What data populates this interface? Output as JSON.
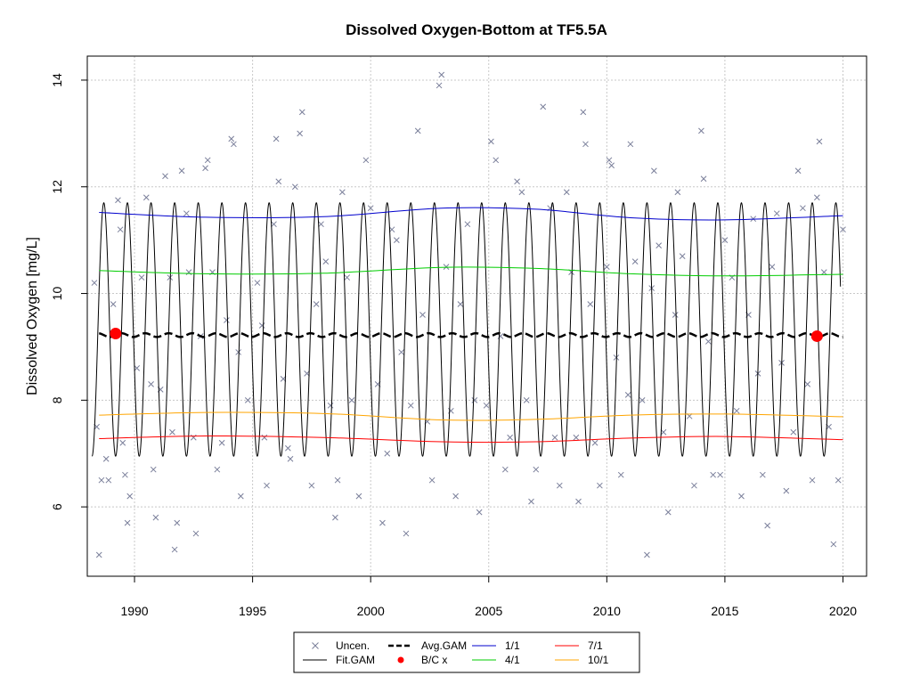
{
  "chart_data": {
    "type": "line",
    "title": "Dissolved Oxygen-Bottom at TF5.5A",
    "xlabel": "",
    "ylabel": "Dissolved Oxygen [mg/L]",
    "xlim": [
      1988.0,
      2021.0
    ],
    "ylim": [
      4.7,
      14.45
    ],
    "x_ticks": [
      1990,
      1995,
      2000,
      2005,
      2010,
      2015,
      2020
    ],
    "x_tick_labels": [
      "1990",
      "1995",
      "2000",
      "2005",
      "2010",
      "2015",
      "2020"
    ],
    "y_ticks": [
      6,
      8,
      10,
      12,
      14
    ],
    "y_tick_labels": [
      "6",
      "8",
      "10",
      "12",
      "14"
    ],
    "grid": true,
    "legend_position": "bottom",
    "legend": [
      {
        "label": "Uncen.",
        "kind": "x-marker",
        "color": "#7a7f9a"
      },
      {
        "label": "Fit.GAM",
        "kind": "line",
        "color": "#000000"
      },
      {
        "label": "Avg.GAM",
        "kind": "dashed-line",
        "color": "#000000"
      },
      {
        "label": "B/C x",
        "kind": "dot",
        "color": "#ff0000"
      },
      {
        "label": "1/1",
        "kind": "line",
        "color": "#0000cd"
      },
      {
        "label": "4/1",
        "kind": "line",
        "color": "#00cd00"
      },
      {
        "label": "7/1",
        "kind": "line",
        "color": "#ff0000"
      },
      {
        "label": "10/1",
        "kind": "line",
        "color": "#ffa500"
      }
    ],
    "series": [
      {
        "name": "1/1",
        "color": "#0000cd",
        "x": [
          1988.5,
          1993,
          1998,
          2003,
          2007,
          2011,
          2015,
          2020
        ],
        "y": [
          11.52,
          11.43,
          11.44,
          11.6,
          11.58,
          11.42,
          11.38,
          11.46
        ]
      },
      {
        "name": "4/1",
        "color": "#00cd00",
        "x": [
          1988.5,
          1993,
          1998,
          2003,
          2007,
          2011,
          2015,
          2020
        ],
        "y": [
          10.43,
          10.37,
          10.38,
          10.49,
          10.47,
          10.37,
          10.33,
          10.36
        ]
      },
      {
        "name": "7/1",
        "color": "#ff0000",
        "x": [
          1988.5,
          1993,
          1998,
          2003,
          2007,
          2011,
          2015,
          2020
        ],
        "y": [
          7.28,
          7.33,
          7.3,
          7.22,
          7.22,
          7.29,
          7.32,
          7.26
        ]
      },
      {
        "name": "10/1",
        "color": "#ffa500",
        "x": [
          1988.5,
          1993,
          1998,
          2003,
          2007,
          2011,
          2015,
          2020
        ],
        "y": [
          7.72,
          7.77,
          7.75,
          7.63,
          7.64,
          7.72,
          7.74,
          7.69
        ]
      },
      {
        "name": "Avg.GAM",
        "color": "#000000",
        "x": [
          1988.5,
          2020
        ],
        "y": [
          9.22,
          9.22
        ]
      },
      {
        "name": "Fit.GAM",
        "color": "#000000",
        "x_start": 1988.2,
        "x_end": 2019.9,
        "max": 11.7,
        "min": 6.95
      }
    ],
    "points_bc": [
      {
        "x": 1989.2,
        "y": 9.25
      },
      {
        "x": 2018.9,
        "y": 9.2
      }
    ],
    "points_uncen": [
      {
        "x": 1988.3,
        "y": 10.2
      },
      {
        "x": 1988.4,
        "y": 7.5
      },
      {
        "x": 1988.5,
        "y": 5.1
      },
      {
        "x": 1988.6,
        "y": 6.5
      },
      {
        "x": 1988.8,
        "y": 6.9
      },
      {
        "x": 1988.9,
        "y": 6.5
      },
      {
        "x": 1989.1,
        "y": 9.8
      },
      {
        "x": 1989.3,
        "y": 11.75
      },
      {
        "x": 1989.4,
        "y": 11.2
      },
      {
        "x": 1989.5,
        "y": 7.2
      },
      {
        "x": 1989.6,
        "y": 6.6
      },
      {
        "x": 1989.7,
        "y": 5.7
      },
      {
        "x": 1989.8,
        "y": 6.2
      },
      {
        "x": 1990.1,
        "y": 8.6
      },
      {
        "x": 1990.3,
        "y": 10.3
      },
      {
        "x": 1990.5,
        "y": 11.8
      },
      {
        "x": 1990.7,
        "y": 8.3
      },
      {
        "x": 1990.8,
        "y": 6.7
      },
      {
        "x": 1990.9,
        "y": 5.8
      },
      {
        "x": 1991.1,
        "y": 8.2
      },
      {
        "x": 1991.3,
        "y": 12.2
      },
      {
        "x": 1991.5,
        "y": 10.3
      },
      {
        "x": 1991.6,
        "y": 7.4
      },
      {
        "x": 1991.7,
        "y": 5.2
      },
      {
        "x": 1991.8,
        "y": 5.7
      },
      {
        "x": 1992.0,
        "y": 12.3
      },
      {
        "x": 1992.2,
        "y": 11.5
      },
      {
        "x": 1992.3,
        "y": 10.4
      },
      {
        "x": 1992.5,
        "y": 7.3
      },
      {
        "x": 1992.6,
        "y": 5.5
      },
      {
        "x": 1992.8,
        "y": 9.2
      },
      {
        "x": 1993.0,
        "y": 12.35
      },
      {
        "x": 1993.1,
        "y": 12.5
      },
      {
        "x": 1993.3,
        "y": 10.4
      },
      {
        "x": 1993.5,
        "y": 6.7
      },
      {
        "x": 1993.7,
        "y": 7.2
      },
      {
        "x": 1993.9,
        "y": 9.5
      },
      {
        "x": 1994.1,
        "y": 12.9
      },
      {
        "x": 1994.2,
        "y": 12.8
      },
      {
        "x": 1994.4,
        "y": 8.9
      },
      {
        "x": 1994.5,
        "y": 6.2
      },
      {
        "x": 1994.8,
        "y": 8.0
      },
      {
        "x": 1995.2,
        "y": 10.2
      },
      {
        "x": 1995.4,
        "y": 9.4
      },
      {
        "x": 1995.5,
        "y": 7.3
      },
      {
        "x": 1995.6,
        "y": 6.4
      },
      {
        "x": 1995.9,
        "y": 11.3
      },
      {
        "x": 1996.0,
        "y": 12.9
      },
      {
        "x": 1996.1,
        "y": 12.1
      },
      {
        "x": 1996.3,
        "y": 8.4
      },
      {
        "x": 1996.5,
        "y": 7.1
      },
      {
        "x": 1996.6,
        "y": 6.9
      },
      {
        "x": 1996.8,
        "y": 12.0
      },
      {
        "x": 1997.0,
        "y": 13.0
      },
      {
        "x": 1997.1,
        "y": 13.4
      },
      {
        "x": 1997.3,
        "y": 8.5
      },
      {
        "x": 1997.5,
        "y": 6.4
      },
      {
        "x": 1997.7,
        "y": 9.8
      },
      {
        "x": 1997.9,
        "y": 11.3
      },
      {
        "x": 1998.1,
        "y": 10.6
      },
      {
        "x": 1998.3,
        "y": 7.9
      },
      {
        "x": 1998.5,
        "y": 5.8
      },
      {
        "x": 1998.6,
        "y": 6.5
      },
      {
        "x": 1998.8,
        "y": 11.9
      },
      {
        "x": 1999.0,
        "y": 10.3
      },
      {
        "x": 1999.2,
        "y": 8.0
      },
      {
        "x": 1999.5,
        "y": 6.2
      },
      {
        "x": 1999.8,
        "y": 12.5
      },
      {
        "x": 2000.0,
        "y": 11.6
      },
      {
        "x": 2000.3,
        "y": 8.3
      },
      {
        "x": 2000.5,
        "y": 5.7
      },
      {
        "x": 2000.7,
        "y": 7.0
      },
      {
        "x": 2000.9,
        "y": 11.2
      },
      {
        "x": 2001.1,
        "y": 11.0
      },
      {
        "x": 2001.3,
        "y": 8.9
      },
      {
        "x": 2001.5,
        "y": 5.5
      },
      {
        "x": 2001.7,
        "y": 7.9
      },
      {
        "x": 2002.0,
        "y": 13.05
      },
      {
        "x": 2002.2,
        "y": 9.6
      },
      {
        "x": 2002.4,
        "y": 7.6
      },
      {
        "x": 2002.6,
        "y": 6.5
      },
      {
        "x": 2002.9,
        "y": 13.9
      },
      {
        "x": 2003.0,
        "y": 14.1
      },
      {
        "x": 2003.2,
        "y": 10.5
      },
      {
        "x": 2003.4,
        "y": 7.8
      },
      {
        "x": 2003.6,
        "y": 6.2
      },
      {
        "x": 2003.8,
        "y": 9.8
      },
      {
        "x": 2004.1,
        "y": 11.3
      },
      {
        "x": 2004.4,
        "y": 8.0
      },
      {
        "x": 2004.6,
        "y": 5.9
      },
      {
        "x": 2004.9,
        "y": 7.9
      },
      {
        "x": 2005.1,
        "y": 12.85
      },
      {
        "x": 2005.3,
        "y": 12.5
      },
      {
        "x": 2005.5,
        "y": 9.2
      },
      {
        "x": 2005.7,
        "y": 6.7
      },
      {
        "x": 2005.9,
        "y": 7.3
      },
      {
        "x": 2006.2,
        "y": 12.1
      },
      {
        "x": 2006.4,
        "y": 11.9
      },
      {
        "x": 2006.6,
        "y": 8.0
      },
      {
        "x": 2006.8,
        "y": 6.1
      },
      {
        "x": 2007.0,
        "y": 6.7
      },
      {
        "x": 2007.3,
        "y": 13.5
      },
      {
        "x": 2007.6,
        "y": 11.6
      },
      {
        "x": 2007.8,
        "y": 7.3
      },
      {
        "x": 2008.0,
        "y": 6.4
      },
      {
        "x": 2008.3,
        "y": 11.9
      },
      {
        "x": 2008.5,
        "y": 10.4
      },
      {
        "x": 2008.7,
        "y": 7.3
      },
      {
        "x": 2008.8,
        "y": 6.1
      },
      {
        "x": 2009.0,
        "y": 13.4
      },
      {
        "x": 2009.1,
        "y": 12.8
      },
      {
        "x": 2009.3,
        "y": 9.8
      },
      {
        "x": 2009.5,
        "y": 7.2
      },
      {
        "x": 2009.7,
        "y": 6.4
      },
      {
        "x": 2010.0,
        "y": 10.5
      },
      {
        "x": 2010.1,
        "y": 12.5
      },
      {
        "x": 2010.2,
        "y": 12.4
      },
      {
        "x": 2010.4,
        "y": 8.8
      },
      {
        "x": 2010.6,
        "y": 6.6
      },
      {
        "x": 2010.9,
        "y": 8.1
      },
      {
        "x": 2011.0,
        "y": 12.8
      },
      {
        "x": 2011.2,
        "y": 10.6
      },
      {
        "x": 2011.5,
        "y": 8.0
      },
      {
        "x": 2011.7,
        "y": 5.1
      },
      {
        "x": 2011.9,
        "y": 10.1
      },
      {
        "x": 2012.0,
        "y": 12.3
      },
      {
        "x": 2012.2,
        "y": 10.9
      },
      {
        "x": 2012.4,
        "y": 7.4
      },
      {
        "x": 2012.6,
        "y": 5.9
      },
      {
        "x": 2012.9,
        "y": 9.6
      },
      {
        "x": 2013.0,
        "y": 11.9
      },
      {
        "x": 2013.2,
        "y": 10.7
      },
      {
        "x": 2013.5,
        "y": 7.7
      },
      {
        "x": 2013.7,
        "y": 6.4
      },
      {
        "x": 2014.0,
        "y": 13.05
      },
      {
        "x": 2014.1,
        "y": 12.15
      },
      {
        "x": 2014.3,
        "y": 9.1
      },
      {
        "x": 2014.5,
        "y": 6.6
      },
      {
        "x": 2014.8,
        "y": 6.6
      },
      {
        "x": 2015.0,
        "y": 11.0
      },
      {
        "x": 2015.3,
        "y": 10.3
      },
      {
        "x": 2015.5,
        "y": 7.8
      },
      {
        "x": 2015.7,
        "y": 6.2
      },
      {
        "x": 2016.0,
        "y": 9.6
      },
      {
        "x": 2016.2,
        "y": 11.4
      },
      {
        "x": 2016.4,
        "y": 8.5
      },
      {
        "x": 2016.6,
        "y": 6.6
      },
      {
        "x": 2016.8,
        "y": 5.65
      },
      {
        "x": 2017.0,
        "y": 10.5
      },
      {
        "x": 2017.2,
        "y": 11.5
      },
      {
        "x": 2017.4,
        "y": 8.7
      },
      {
        "x": 2017.6,
        "y": 6.3
      },
      {
        "x": 2017.9,
        "y": 7.4
      },
      {
        "x": 2018.1,
        "y": 12.3
      },
      {
        "x": 2018.3,
        "y": 11.6
      },
      {
        "x": 2018.5,
        "y": 8.3
      },
      {
        "x": 2018.7,
        "y": 6.5
      },
      {
        "x": 2018.9,
        "y": 11.8
      },
      {
        "x": 2019.0,
        "y": 12.85
      },
      {
        "x": 2019.2,
        "y": 10.4
      },
      {
        "x": 2019.4,
        "y": 7.5
      },
      {
        "x": 2019.6,
        "y": 5.3
      },
      {
        "x": 2019.8,
        "y": 6.5
      },
      {
        "x": 2020.0,
        "y": 11.2
      }
    ]
  }
}
